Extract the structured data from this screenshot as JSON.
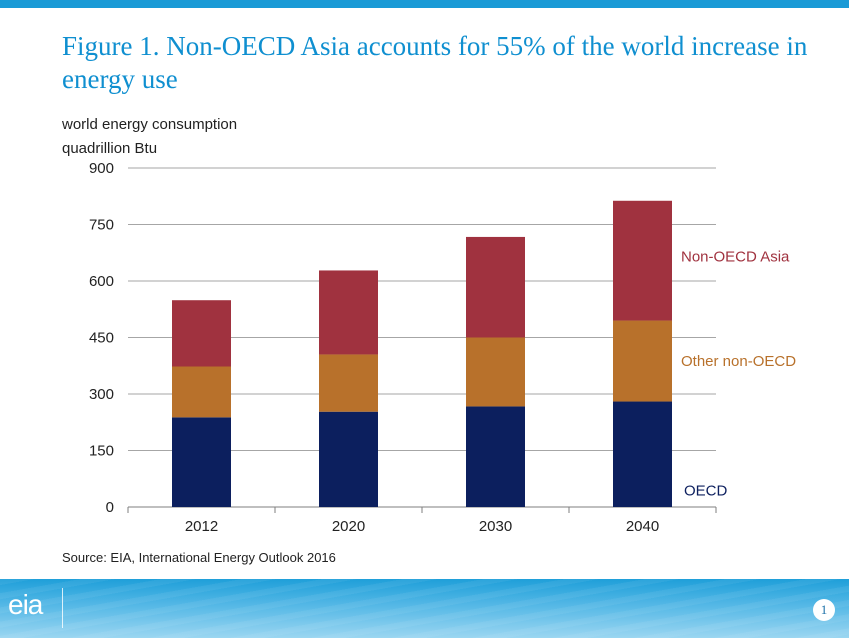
{
  "title": "Figure 1. Non-OECD Asia accounts for 55% of the world increase in energy use",
  "source": "Source:  EIA, International Energy Outlook 2016",
  "page_number": "1",
  "logo_text": "eia",
  "colors": {
    "accent": "#1a9ad6",
    "title": "#0f8fd0",
    "oecd": "#0c1f5e",
    "other_non_oecd": "#b8712b",
    "non_oecd_asia": "#a0323f"
  },
  "chart_data": {
    "type": "bar",
    "stacked": true,
    "title": "world energy consumption",
    "ylabel": "quadrillion Btu",
    "categories": [
      "2012",
      "2020",
      "2030",
      "2040"
    ],
    "series": [
      {
        "name": "OECD",
        "values": [
          238,
          253,
          267,
          280
        ],
        "color": "#0c1f5e"
      },
      {
        "name": "Other non-OECD",
        "values": [
          135,
          152,
          183,
          215
        ],
        "color": "#b8712b"
      },
      {
        "name": "Non-OECD Asia",
        "values": [
          176,
          223,
          267,
          318
        ],
        "color": "#a0323f"
      }
    ],
    "ylim": [
      0,
      900
    ],
    "yticks": [
      0,
      150,
      300,
      450,
      600,
      750,
      900
    ],
    "grid": true,
    "legend": "right, inline labels"
  }
}
